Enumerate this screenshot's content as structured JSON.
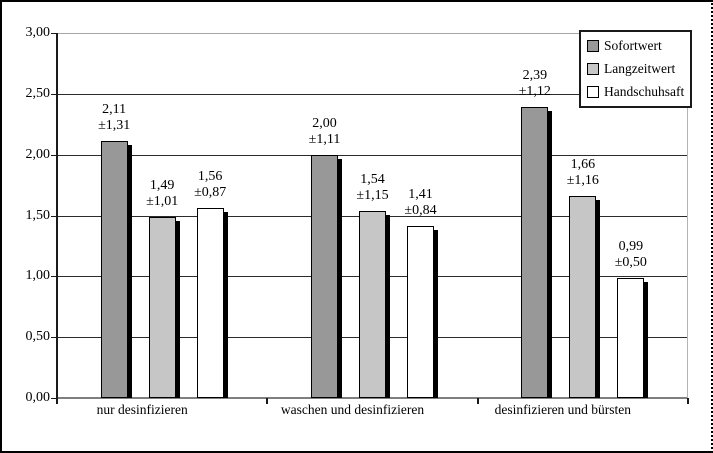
{
  "chart_data": {
    "type": "bar",
    "title": "",
    "xlabel": "",
    "ylabel": "",
    "categories": [
      "nur desinfizieren",
      "waschen und desinfizieren",
      "desinfizieren und bürsten"
    ],
    "series": [
      {
        "name": "Sofortwert",
        "color": "#989898",
        "values": [
          2.11,
          2.0,
          2.39
        ],
        "std": [
          1.31,
          1.11,
          1.12
        ],
        "labels": [
          [
            "2,11",
            "±1,31"
          ],
          [
            "2,00",
            "±1,11"
          ],
          [
            "2,39",
            "±1,12"
          ]
        ]
      },
      {
        "name": "Langzeitwert",
        "color": "#c6c6c6",
        "values": [
          1.49,
          1.54,
          1.66
        ],
        "std": [
          1.01,
          1.15,
          1.16
        ],
        "labels": [
          [
            "1,49",
            "±1,01"
          ],
          [
            "1,54",
            "±1,15"
          ],
          [
            "1,66",
            "±1,16"
          ]
        ]
      },
      {
        "name": "Handschuhsaft",
        "color": "#ffffff",
        "values": [
          1.56,
          1.41,
          0.99
        ],
        "std": [
          0.87,
          0.84,
          0.5
        ],
        "labels": [
          [
            "1,56",
            "±0,87"
          ],
          [
            "1,41",
            "±0,84"
          ],
          [
            "0,99",
            "±0,50"
          ]
        ]
      }
    ],
    "y_ticks": [
      "3,00",
      "2,50",
      "2,00",
      "1,50",
      "1,00",
      "0,50",
      "0,00"
    ],
    "ylim": [
      0,
      3
    ],
    "y_step": 0.5,
    "grid": true,
    "legend_position": "top-right",
    "colors": {
      "bar_border": "#000000",
      "bar_shadow": "#000000",
      "gridline": "#2b2b2b",
      "top_gridline": "#a6a6a6",
      "axis_line": "#7f7f7f"
    }
  }
}
